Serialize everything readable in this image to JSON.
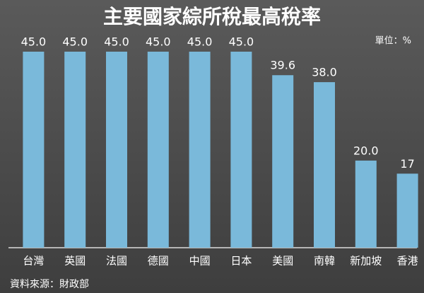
{
  "chart_data": {
    "type": "bar",
    "title": "主要國家綜所稅最高稅率",
    "unit": "單位：%",
    "source": "資料來源：財政部",
    "categories": [
      "台灣",
      "英國",
      "法國",
      "德國",
      "中國",
      "日本",
      "美國",
      "南韓",
      "新加坡",
      "香港"
    ],
    "values": [
      45,
      45,
      45,
      45,
      45,
      45,
      39.6,
      38,
      20,
      17
    ],
    "value_labels": [
      "45.0",
      "45.0",
      "45.0",
      "45.0",
      "45.0",
      "45.0",
      "39.6",
      "38.0",
      "20.0",
      "17"
    ],
    "color": "#7ab9da",
    "ylim": [
      0,
      45
    ]
  }
}
